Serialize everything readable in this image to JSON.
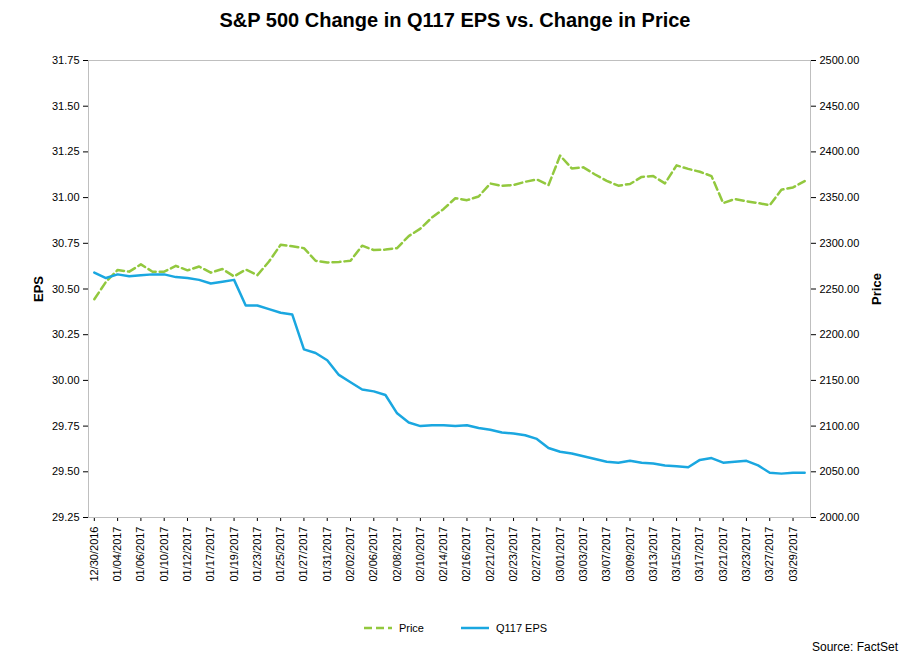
{
  "chart_data": {
    "type": "line",
    "title": "S&P 500 Change in Q117 EPS vs. Change in Price",
    "source": "Source: FactSet",
    "y_label": "EPS",
    "y2_label": "Price",
    "categories": [
      "12/30/2016",
      null,
      "01/04/2017",
      null,
      "01/06/2017",
      null,
      "01/10/2017",
      null,
      "01/12/2017",
      null,
      "01/17/2017",
      null,
      "01/19/2017",
      null,
      "01/23/2017",
      null,
      "01/25/2017",
      null,
      "01/27/2017",
      null,
      "01/31/2017",
      null,
      "02/02/2017",
      null,
      "02/06/2017",
      null,
      "02/08/2017",
      null,
      "02/10/2017",
      null,
      "02/14/2017",
      null,
      "02/16/2017",
      null,
      "02/21/2017",
      null,
      "02/23/2017",
      null,
      "02/27/2017",
      null,
      "03/01/2017",
      null,
      "03/03/2017",
      null,
      "03/07/2017",
      null,
      "03/09/2017",
      null,
      "03/13/2017",
      null,
      "03/15/2017",
      null,
      "03/17/2017",
      null,
      "03/21/2017",
      null,
      "03/23/2017",
      null,
      "03/27/2017",
      null,
      "03/29/2017",
      null
    ],
    "series": [
      {
        "name": "Price",
        "color": "#92c83e",
        "line_style": "dashed",
        "axis": "y2",
        "values": [
          2238.8,
          2257.8,
          2270.8,
          2269.0,
          2277.0,
          2268.9,
          2268.9,
          2275.3,
          2270.4,
          2274.6,
          2267.9,
          2271.9,
          2263.7,
          2271.3,
          2265.2,
          2280.1,
          2298.4,
          2296.7,
          2294.7,
          2280.9,
          2278.9,
          2279.6,
          2280.9,
          2297.4,
          2292.6,
          2293.1,
          2294.7,
          2307.9,
          2316.1,
          2328.3,
          2337.6,
          2349.3,
          2347.2,
          2351.2,
          2365.4,
          2362.8,
          2363.8,
          2367.3,
          2369.8,
          2363.6,
          2396.0,
          2381.9,
          2383.1,
          2375.3,
          2368.4,
          2363.0,
          2364.9,
          2372.6,
          2373.5,
          2365.5,
          2385.3,
          2381.4,
          2378.3,
          2373.5,
          2344.0,
          2348.5,
          2346.0,
          2344.0,
          2341.6,
          2358.6,
          2361.1,
          2368.1
        ]
      },
      {
        "name": "Q117 EPS",
        "color": "#1aa7e0",
        "line_style": "solid",
        "values": [
          30.59,
          30.56,
          30.58,
          30.57,
          30.575,
          30.58,
          30.58,
          30.565,
          30.56,
          30.55,
          30.53,
          30.54,
          30.55,
          30.41,
          30.41,
          30.39,
          30.37,
          30.36,
          30.17,
          30.15,
          30.11,
          30.03,
          29.99,
          29.95,
          29.94,
          29.92,
          29.82,
          29.77,
          29.75,
          29.755,
          29.755,
          29.75,
          29.755,
          29.74,
          29.73,
          29.715,
          29.71,
          29.7,
          29.68,
          29.63,
          29.61,
          29.6,
          29.585,
          29.57,
          29.555,
          29.55,
          29.56,
          29.55,
          29.545,
          29.535,
          29.53,
          29.525,
          29.565,
          29.575,
          29.55,
          29.555,
          29.56,
          29.535,
          29.495,
          29.49,
          29.495,
          29.495
        ]
      }
    ],
    "ylim": [
      29.25,
      31.75
    ],
    "yticks": [
      {
        "value": 29.25,
        "label": "29.25"
      },
      {
        "value": 29.5,
        "label": "29.50"
      },
      {
        "value": 29.75,
        "label": "29.75"
      },
      {
        "value": 30,
        "label": "30.00"
      },
      {
        "value": 30.25,
        "label": "30.25"
      },
      {
        "value": 30.5,
        "label": "30.50"
      },
      {
        "value": 30.75,
        "label": "30.75"
      },
      {
        "value": 31,
        "label": "31.00"
      },
      {
        "value": 31.25,
        "label": "31.25"
      },
      {
        "value": 31.5,
        "label": "31.50"
      },
      {
        "value": 31.75,
        "label": "31.75"
      }
    ],
    "y2lim": [
      2000,
      2500
    ],
    "y2ticks": [
      {
        "value": 2000,
        "label": "2000.00"
      },
      {
        "value": 2050,
        "label": "2050.00"
      },
      {
        "value": 2100,
        "label": "2100.00"
      },
      {
        "value": 2150,
        "label": "2150.00"
      },
      {
        "value": 2200,
        "label": "2200.00"
      },
      {
        "value": 2250,
        "label": "2250.00"
      },
      {
        "value": 2300,
        "label": "2300.00"
      },
      {
        "value": 2350,
        "label": "2350.00"
      },
      {
        "value": 2400,
        "label": "2400.00"
      },
      {
        "value": 2450,
        "label": "2450.00"
      },
      {
        "value": 2500,
        "label": "2500.00"
      }
    ],
    "grid": false,
    "legend": "bottom"
  }
}
